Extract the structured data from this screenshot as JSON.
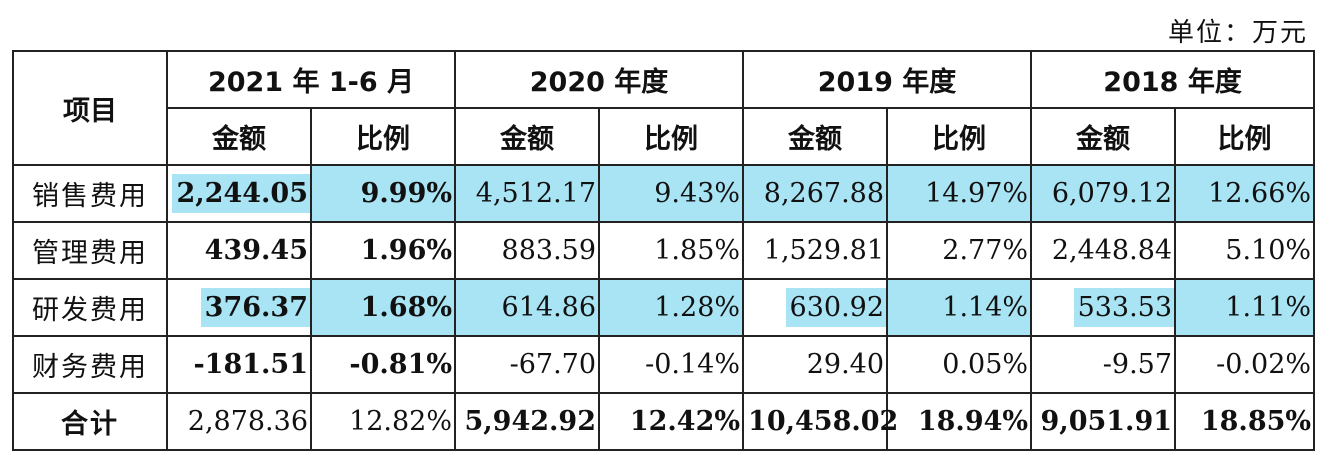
{
  "unit_label": "单位：万元",
  "header": {
    "item_label": "项目",
    "periods": [
      "2021 年 1-6 月",
      "2020 年度",
      "2019 年度",
      "2018 年度"
    ],
    "amount_label": "金额",
    "ratio_label": "比例"
  },
  "rows": [
    {
      "label": "销售费用",
      "values": [
        "2,244.05",
        "9.99%",
        "4,512.17",
        "9.43%",
        "8,267.88",
        "14.97%",
        "6,079.12",
        "12.66%"
      ]
    },
    {
      "label": "管理费用",
      "values": [
        "439.45",
        "1.96%",
        "883.59",
        "1.85%",
        "1,529.81",
        "2.77%",
        "2,448.84",
        "5.10%"
      ]
    },
    {
      "label": "研发费用",
      "values": [
        "376.37",
        "1.68%",
        "614.86",
        "1.28%",
        "630.92",
        "1.14%",
        "533.53",
        "1.11%"
      ]
    },
    {
      "label": "财务费用",
      "values": [
        "-181.51",
        "-0.81%",
        "-67.70",
        "-0.14%",
        "29.40",
        "0.05%",
        "-9.57",
        "-0.02%"
      ]
    },
    {
      "label": "合计",
      "values": [
        "2,878.36",
        "12.82%",
        "5,942.92",
        "12.42%",
        "10,458.02",
        "18.94%",
        "9,051.91",
        "18.85%"
      ]
    }
  ],
  "highlight_color": "#a9e4f5"
}
